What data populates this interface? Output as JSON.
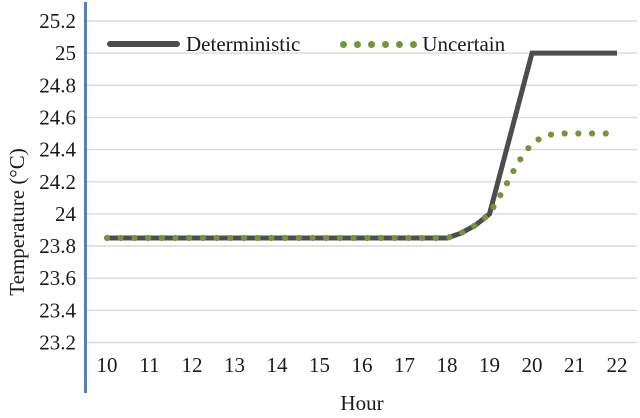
{
  "chart_data": {
    "type": "line",
    "title": "",
    "xlabel": "Hour",
    "ylabel": "Temperature (°C)",
    "x_ticks": [
      10,
      11,
      12,
      13,
      14,
      15,
      16,
      17,
      18,
      19,
      20,
      21,
      22
    ],
    "y_ticks": [
      25.2,
      25,
      24.8,
      24.6,
      24.4,
      24.2,
      24,
      23.8,
      23.6,
      23.4,
      23.2
    ],
    "xlim": [
      10,
      22
    ],
    "ylim": [
      23.2,
      25.2
    ],
    "grid": "horizontal",
    "legend_position": "top-inside",
    "colors": {
      "axis": "#4e81bd",
      "grid": "#d9d9d9",
      "text": "#1a1a1a"
    },
    "series": [
      {
        "name": "Deterministic",
        "color": "#4d4d4d",
        "style": "solid",
        "points": [
          [
            10,
            23.85
          ],
          [
            11,
            23.85
          ],
          [
            12,
            23.85
          ],
          [
            13,
            23.85
          ],
          [
            14,
            23.85
          ],
          [
            15,
            23.85
          ],
          [
            16,
            23.85
          ],
          [
            17,
            23.85
          ],
          [
            18,
            23.85
          ],
          [
            18.33,
            23.88
          ],
          [
            18.67,
            23.93
          ],
          [
            19,
            24.0
          ],
          [
            20,
            25.0
          ],
          [
            21,
            25.0
          ],
          [
            22,
            25.0
          ]
        ]
      },
      {
        "name": "Uncertain",
        "color": "#77933c",
        "style": "dotted",
        "points": [
          [
            10,
            23.85
          ],
          [
            11,
            23.85
          ],
          [
            12,
            23.85
          ],
          [
            13,
            23.85
          ],
          [
            14,
            23.85
          ],
          [
            15,
            23.85
          ],
          [
            16,
            23.85
          ],
          [
            17,
            23.85
          ],
          [
            18,
            23.85
          ],
          [
            18.33,
            23.88
          ],
          [
            18.67,
            23.93
          ],
          [
            19,
            24.0
          ],
          [
            19.33,
            24.15
          ],
          [
            19.67,
            24.32
          ],
          [
            20,
            24.44
          ],
          [
            20.33,
            24.49
          ],
          [
            20.67,
            24.5
          ],
          [
            21,
            24.5
          ],
          [
            22,
            24.5
          ]
        ]
      }
    ]
  }
}
